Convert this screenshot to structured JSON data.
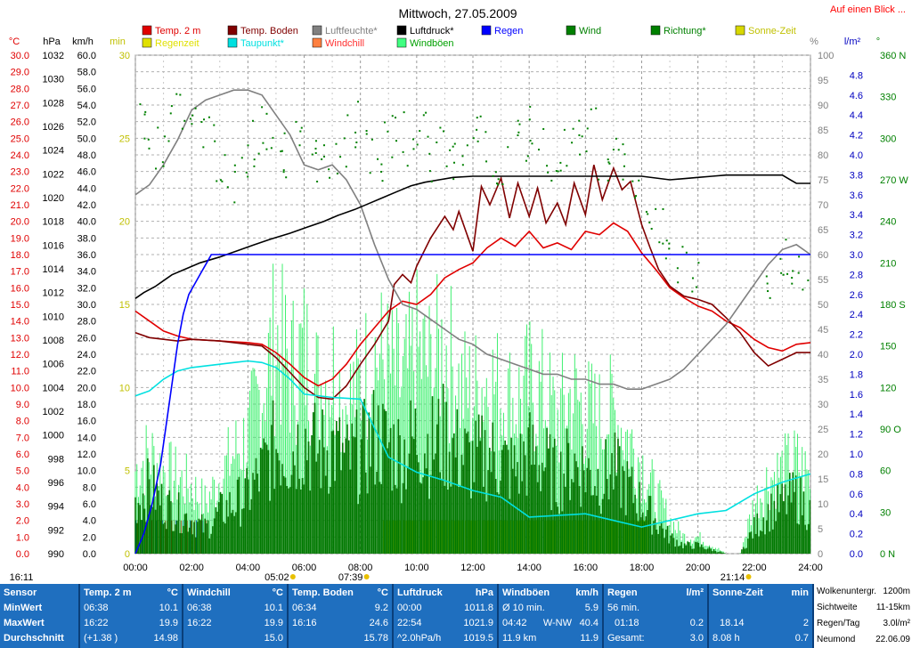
{
  "chart_data": {
    "type": "line",
    "title": "Mittwoch, 27.05.2009",
    "top_right_link": "Auf einen Blick ...",
    "legend": [
      {
        "label": "Temp. 2 m",
        "color": "#e00000"
      },
      {
        "label": "Temp. Boden",
        "color": "#800000"
      },
      {
        "label": "Luftfeuchte*",
        "color": "#808080"
      },
      {
        "label": "Luftdruck*",
        "color": "#000000"
      },
      {
        "label": "Regen",
        "color": "#0000ff"
      },
      {
        "label": "Wind",
        "color": "#008000"
      },
      {
        "label": "Richtung*",
        "color": "#008000"
      },
      {
        "label": "Sonne-Zeit",
        "color": "#d8d800"
      },
      {
        "label": "Regenzeit",
        "color": "#e0e000"
      },
      {
        "label": "Taupunkt*",
        "color": "#00e0e0"
      },
      {
        "label": "Windchill",
        "color": "#ff8040"
      },
      {
        "label": "Windböen",
        "color": "#40ff80"
      }
    ],
    "legend_text_colors": {
      "Regenzeit": "#e0e000",
      "Taupunkt*": "#00e0e0",
      "Windchill": "#ff3030",
      "Windböen": "#00a000",
      "Luftfeuchte*": "#808080",
      "Richtung*": "#008000",
      "Sonne-Zeit": "#c0c000"
    },
    "axes": {
      "temp": {
        "label": "°C",
        "min": 0,
        "max": 30,
        "step": 1,
        "color": "#e00000"
      },
      "pressure": {
        "label": "hPa",
        "min": 990,
        "max": 1032,
        "step": 2,
        "color": "#000000"
      },
      "wind": {
        "label": "km/h",
        "min": 0,
        "max": 60,
        "step": 2,
        "color": "#000000"
      },
      "minutes": {
        "label": "min",
        "min": 0,
        "max": 30,
        "step": 5,
        "color": "#c0c000"
      },
      "humidity": {
        "label": "%",
        "min": 0,
        "max": 100,
        "step": 5,
        "color": "#808080"
      },
      "rain": {
        "label": "l/m²",
        "min": 0,
        "max": 5,
        "step": 0.2,
        "color": "#0000ff"
      },
      "direction": {
        "label": "°",
        "min": 0,
        "max": 360,
        "step": 30,
        "color": "#008000",
        "tick_labels": [
          "0 N",
          "30",
          "60",
          "90 O",
          "120",
          "150",
          "180 S",
          "210",
          "240",
          "270 W",
          "300",
          "330",
          "360 N"
        ]
      }
    },
    "x_ticks": [
      "00:00",
      "02:00",
      "04:00",
      "06:00",
      "08:00",
      "10:00",
      "12:00",
      "14:00",
      "16:00",
      "18:00",
      "20:00",
      "22:00",
      "24:00"
    ],
    "xlim_hours": [
      0,
      24
    ],
    "time_markers": [
      {
        "label": "16:11",
        "hour": 0
      },
      {
        "label": "05:02",
        "hour": 5.03
      },
      {
        "label": "07:39",
        "hour": 7.65
      },
      {
        "label": "21:14",
        "hour": 21.23
      }
    ],
    "series": [
      {
        "name": "Temp. 2 m",
        "axis": "temp",
        "color": "#e00000",
        "x": [
          0,
          0.5,
          1,
          1.5,
          2,
          3,
          4,
          4.5,
          5,
          5.5,
          6,
          6.5,
          7,
          7.5,
          8,
          8.5,
          9,
          9.5,
          10,
          10.5,
          11,
          11.5,
          12,
          12.5,
          13,
          13.5,
          14,
          14.5,
          15,
          15.5,
          16,
          16.5,
          17,
          17.5,
          18,
          18.5,
          19,
          19.5,
          20,
          20.5,
          21,
          21.5,
          22,
          22.5,
          23,
          23.5,
          24
        ],
        "y": [
          14.6,
          14.0,
          13.4,
          13.1,
          12.9,
          12.8,
          12.7,
          12.6,
          12.1,
          11.4,
          10.6,
          10.1,
          10.5,
          11.4,
          12.6,
          13.6,
          14.6,
          15.2,
          15.0,
          15.6,
          16.6,
          17.1,
          17.5,
          18.4,
          19.0,
          18.5,
          19.4,
          18.4,
          18.7,
          18.3,
          19.4,
          19.2,
          19.9,
          19.4,
          18.1,
          17.1,
          16.0,
          15.4,
          14.9,
          14.6,
          14.0,
          13.6,
          12.9,
          12.4,
          12.2,
          12.6,
          12.7
        ]
      },
      {
        "name": "Temp. Boden",
        "axis": "temp",
        "color": "#800000",
        "x": [
          0,
          0.5,
          1,
          1.5,
          2,
          3,
          4,
          4.5,
          5,
          5.5,
          6,
          6.5,
          7,
          7.5,
          8,
          8.5,
          9,
          9.2,
          9.5,
          9.8,
          10,
          10.5,
          11,
          11.3,
          11.5,
          12,
          12.3,
          12.6,
          13,
          13.3,
          13.6,
          14,
          14.3,
          14.6,
          15,
          15.3,
          15.6,
          16,
          16.3,
          16.6,
          17,
          17.3,
          17.6,
          18,
          18.3,
          18.6,
          19,
          19.5,
          20,
          20.5,
          21,
          21.5,
          22,
          22.5,
          23,
          23.5,
          24
        ],
        "y": [
          13.3,
          13.0,
          12.9,
          12.8,
          12.9,
          12.8,
          12.6,
          12.5,
          11.8,
          10.9,
          10.0,
          9.4,
          9.3,
          10.1,
          11.4,
          12.6,
          14.0,
          16.2,
          16.8,
          16.3,
          17.3,
          19.0,
          20.3,
          19.5,
          20.6,
          18.2,
          22.1,
          21.0,
          22.6,
          20.2,
          22.3,
          20.3,
          22.0,
          19.9,
          21.1,
          19.8,
          22.3,
          20.4,
          23.4,
          21.3,
          23.2,
          21.9,
          22.4,
          19.8,
          18.4,
          17.1,
          16.1,
          15.5,
          15.3,
          15.0,
          14.2,
          13.3,
          12.1,
          11.3,
          11.7,
          12.1,
          12.1
        ]
      },
      {
        "name": "Luftfeuchte*",
        "axis": "humidity",
        "color": "#808080",
        "x": [
          0,
          0.5,
          1,
          1.5,
          2,
          2.5,
          3,
          3.5,
          4,
          4.5,
          5,
          5.5,
          6,
          6.5,
          7,
          7.5,
          8,
          8.5,
          9,
          9.5,
          10,
          10.5,
          11,
          11.5,
          12,
          12.5,
          13,
          13.5,
          14,
          14.5,
          15,
          15.5,
          16,
          16.5,
          17,
          17.5,
          18,
          18.5,
          19,
          19.5,
          20,
          20.5,
          21,
          21.5,
          22,
          22.5,
          23,
          23.5,
          24
        ],
        "y": [
          72,
          74,
          78,
          83,
          89,
          91,
          92,
          93,
          93,
          92,
          88,
          84,
          78,
          77,
          78,
          75,
          70,
          62,
          55,
          50,
          49,
          47,
          45,
          43,
          42,
          40,
          39,
          38,
          37,
          36,
          36,
          35,
          35,
          34,
          34,
          33,
          33,
          34,
          35,
          37,
          40,
          43,
          46,
          50,
          54,
          58,
          61,
          62,
          60
        ]
      },
      {
        "name": "Luftdruck*",
        "axis": "pressure",
        "color": "#000000",
        "x": [
          0,
          0.3,
          0.7,
          1,
          1.3,
          1.8,
          2.3,
          3,
          3.6,
          4.2,
          4.8,
          5.5,
          6.1,
          6.7,
          7.2,
          7.8,
          8.3,
          8.8,
          9.3,
          9.8,
          10.3,
          10.8,
          11.3,
          12,
          13,
          14,
          15,
          16,
          17,
          18,
          19,
          19.5,
          20,
          20.5,
          21,
          22,
          23,
          23.5,
          24
        ],
        "y": [
          1011.5,
          1012.0,
          1012.5,
          1013.0,
          1013.5,
          1014.0,
          1014.5,
          1015.0,
          1015.5,
          1016.0,
          1016.5,
          1017.0,
          1017.5,
          1018.0,
          1018.5,
          1019.0,
          1019.5,
          1020.0,
          1020.5,
          1021.0,
          1021.3,
          1021.5,
          1021.7,
          1021.8,
          1021.8,
          1021.8,
          1021.8,
          1021.8,
          1021.8,
          1021.8,
          1021.5,
          1021.6,
          1021.7,
          1021.8,
          1021.9,
          1021.9,
          1021.9,
          1021.2,
          1021.2
        ]
      },
      {
        "name": "Taupunkt*",
        "axis": "temp",
        "color": "#00e0e0",
        "x": [
          0,
          0.5,
          1,
          1.5,
          2,
          2.5,
          3,
          3.5,
          4,
          4.5,
          5,
          5.5,
          6,
          7,
          8,
          9,
          10,
          11,
          12,
          13,
          14,
          15,
          16,
          17,
          18,
          19,
          20,
          21,
          22,
          23,
          24
        ],
        "y": [
          9.5,
          9.8,
          10.5,
          11.0,
          11.2,
          11.3,
          11.4,
          11.5,
          11.6,
          11.5,
          11.2,
          10.5,
          9.6,
          9.4,
          9.3,
          5.8,
          4.9,
          4.4,
          3.8,
          3.4,
          2.2,
          2.3,
          2.4,
          2.0,
          1.6,
          2.0,
          2.4,
          2.6,
          3.6,
          4.3,
          4.8
        ]
      },
      {
        "name": "Regen",
        "axis": "rain",
        "color": "#0000ff",
        "x": [
          0,
          0.3,
          0.6,
          0.9,
          1.2,
          1.5,
          1.7,
          1.9,
          2.1,
          2.3,
          2.5,
          2.7,
          3.0,
          24
        ],
        "y": [
          0,
          0.2,
          0.5,
          0.9,
          1.5,
          2.1,
          2.4,
          2.6,
          2.7,
          2.8,
          2.9,
          3.0,
          3.0,
          3.0
        ]
      },
      {
        "name": "Wind",
        "axis": "wind",
        "color": "#008000",
        "x": [
          0,
          0.5,
          1,
          1.5,
          2,
          2.5,
          3,
          3.5,
          4,
          4.5,
          5,
          5.5,
          6,
          6.5,
          7,
          7.5,
          8,
          8.5,
          9,
          9.5,
          10,
          10.5,
          11,
          11.5,
          12,
          12.5,
          13,
          13.5,
          14,
          14.5,
          15,
          15.5,
          16,
          16.5,
          17,
          17.5,
          18,
          18.5,
          19,
          19.5,
          20,
          20.5,
          21,
          21.5,
          22,
          22.5,
          23,
          23.5,
          24
        ],
        "y": [
          6,
          8,
          6,
          5,
          4,
          3,
          5,
          6,
          7,
          10,
          13,
          12,
          14,
          12,
          13,
          11,
          12,
          14,
          13,
          12,
          14,
          13,
          14,
          12,
          11,
          12,
          11,
          10,
          12,
          11,
          9,
          11,
          10,
          9,
          10,
          8,
          6,
          4,
          2,
          1,
          1,
          0.5,
          0,
          0,
          3,
          5,
          6,
          7,
          5
        ]
      },
      {
        "name": "Windböen",
        "axis": "wind",
        "color": "#40ff80",
        "x": [
          0,
          0.5,
          1,
          1.5,
          2,
          2.5,
          3,
          3.5,
          4,
          4.5,
          5,
          5.5,
          6,
          6.5,
          7,
          7.5,
          8,
          8.5,
          9,
          9.5,
          10,
          10.5,
          11,
          11.5,
          12,
          12.5,
          13,
          13.5,
          14,
          14.5,
          15,
          15.5,
          16,
          16.5,
          17,
          17.5,
          18,
          18.5,
          19,
          19.5,
          20,
          20.5,
          21,
          21.5,
          22,
          22.5,
          23,
          23.5,
          24
        ],
        "y": [
          10,
          12,
          10,
          9,
          8,
          6,
          9,
          12,
          14,
          20,
          26,
          22,
          24,
          20,
          22,
          18,
          20,
          24,
          22,
          20,
          24,
          22,
          25,
          20,
          19,
          21,
          19,
          18,
          20,
          19,
          16,
          19,
          17,
          16,
          17,
          14,
          11,
          7,
          4,
          2,
          2,
          1,
          0,
          0,
          6,
          9,
          10,
          11,
          9
        ]
      },
      {
        "name": "Sonne-Zeit",
        "axis": "minutes",
        "color": "#d8d800",
        "x": [
          8.8,
          9.5,
          10,
          11,
          12,
          13,
          14,
          15,
          16,
          17,
          18,
          18.3
        ],
        "y": [
          2,
          2,
          2,
          2,
          2,
          2,
          2,
          2,
          2,
          2,
          2,
          2
        ]
      },
      {
        "name": "Regenzeit",
        "axis": "minutes",
        "color": "#e00000",
        "x": [
          0,
          0.5,
          1,
          1.5,
          2,
          2.5
        ],
        "y": [
          2,
          2,
          2,
          2,
          2,
          2
        ]
      }
    ],
    "direction_points": {
      "axis": "direction",
      "color": "#008000",
      "x": [
        0.2,
        0.6,
        1,
        1.4,
        1.8,
        2.2,
        2.6,
        3,
        3.4,
        3.8,
        4.2,
        4.6,
        5,
        5.4,
        5.8,
        6.2,
        6.6,
        7,
        7.4,
        7.8,
        8.2,
        8.6,
        9,
        9.4,
        9.8,
        10.2,
        10.6,
        11,
        11.4,
        11.8,
        12.2,
        12.6,
        13,
        13.4,
        13.8,
        14.2,
        14.6,
        15,
        15.4,
        15.8,
        16.2,
        16.6,
        17,
        17.4,
        17.8,
        18.2,
        18.6,
        19,
        19.4,
        19.8,
        22.5,
        22.9,
        23.3,
        23.7
      ],
      "y": [
        310,
        290,
        300,
        320,
        325,
        310,
        300,
        280,
        270,
        285,
        300,
        310,
        300,
        290,
        295,
        300,
        285,
        290,
        300,
        310,
        295,
        280,
        300,
        310,
        290,
        300,
        285,
        295,
        280,
        300,
        310,
        290,
        280,
        295,
        300,
        310,
        290,
        285,
        300,
        295,
        310,
        290,
        300,
        280,
        270,
        250,
        230,
        220,
        210,
        205,
        200,
        210,
        205,
        200
      ]
    }
  },
  "stats_table": {
    "sensor": {
      "title": "Sensor",
      "rows": [
        "MinWert",
        "MaxWert",
        "Durchschnitt"
      ]
    },
    "temp2m": {
      "title": "Temp. 2 m",
      "unit": "°C",
      "rows": [
        [
          "06:38",
          "10.1"
        ],
        [
          "16:22",
          "19.9"
        ],
        [
          "(+1.38 )",
          "14.98"
        ]
      ]
    },
    "windchill": {
      "title": "Windchill",
      "unit": "°C",
      "rows": [
        [
          "06:38",
          "10.1"
        ],
        [
          "16:22",
          "19.9"
        ],
        [
          "",
          "15.0"
        ]
      ]
    },
    "tempboden": {
      "title": "Temp. Boden",
      "unit": "°C",
      "rows": [
        [
          "06:34",
          "9.2"
        ],
        [
          "16:16",
          "24.6"
        ],
        [
          "",
          "15.78"
        ]
      ]
    },
    "luftdruck": {
      "title": "Luftdruck",
      "unit": "hPa",
      "rows": [
        [
          "00:00",
          "1011.8"
        ],
        [
          "22:54",
          "1021.9"
        ],
        [
          "^2.0hPa/h",
          "1019.5"
        ]
      ]
    },
    "windboeen": {
      "title": "Windböen",
      "unit": "km/h",
      "rows": [
        [
          "Ø 10 min.",
          "",
          "5.9"
        ],
        [
          "04:42",
          "W-NW",
          "40.4"
        ],
        [
          "11.9 km",
          "",
          "11.9"
        ]
      ]
    },
    "regen": {
      "title": "Regen",
      "unit": "l/m²",
      "rows": [
        [
          "56 min.",
          ""
        ],
        [
          "01:18",
          "0.2"
        ],
        [
          "Gesamt:",
          "3.0"
        ]
      ]
    },
    "sonnezeit": {
      "title": "Sonne-Zeit",
      "unit": "min",
      "rows": [
        [
          "",
          ""
        ],
        [
          "18.14",
          "2"
        ],
        [
          "8.08 h",
          "0.7"
        ]
      ]
    },
    "extra": {
      "rows": [
        [
          "Wolkenuntergr.",
          "1200m"
        ],
        [
          "Sichtweite",
          "11-15km"
        ],
        [
          "Regen/Tag",
          "3.0l/m²"
        ],
        [
          "Neumond",
          "22.06.09"
        ]
      ]
    }
  }
}
